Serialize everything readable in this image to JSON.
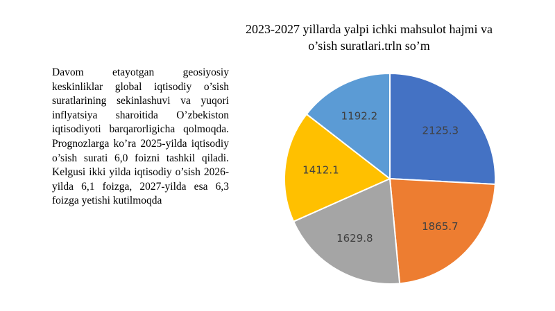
{
  "text": "Davom etayotgan geosiyosiy keskinliklar global iqtisodiy o’sish suratlarining sekinlashuvi va yuqori inflyatsiya sharoitida O’zbekiston iqtisodiyoti barqarorligicha qolmoqda. Prognozlarga ko’ra 2025-yilda iqtisodiy o’sish surati 6,0 foizni tashkil qiladi. Kelgusi ikki yilda iqtisodiy o’sish 2026-yilda 6,1 foizga, 2027-yilda esa 6,3 foizga yetishi kutilmoqda",
  "chart_data": {
    "type": "pie",
    "title": "2023-2027 yillarda yalpi ichki mahsulot hajmi va o’sish suratlari.trln so’m",
    "values": [
      2125.3,
      1865.7,
      1629.8,
      1412.1,
      1192.2
    ],
    "colors": [
      "#4472c4",
      "#ed7d31",
      "#a5a5a5",
      "#ffc000",
      "#5b9bd5"
    ]
  }
}
